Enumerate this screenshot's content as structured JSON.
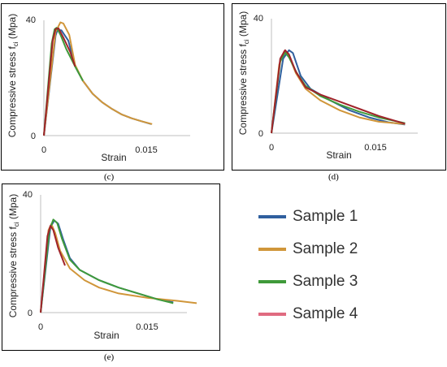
{
  "colors": {
    "Sample 1": "#2f5f9e",
    "Sample 2": "#d0963a",
    "Sample 3": "#3f9a3a",
    "Sample 4": "#a0232a",
    "Sample 4 legend": "#e06b80"
  },
  "legend": {
    "items": [
      {
        "label": "Sample 1",
        "color": "#2f5f9e"
      },
      {
        "label": "Sample 2",
        "color": "#d0963a"
      },
      {
        "label": "Sample 3",
        "color": "#3f9a3a"
      },
      {
        "label": "Sample 4",
        "color": "#e06b80"
      }
    ]
  },
  "chart_data": [
    {
      "id": "c",
      "type": "line",
      "caption": "(c)",
      "xlabel": "Strain",
      "ylabel_main": "Compressive stress f",
      "ylabel_sub": "ci",
      "ylabel_unit": " (Mpa)",
      "xlim": [
        0,
        0.015
      ],
      "ylim": [
        0,
        40
      ],
      "x_ticks": [
        "0",
        "0.015"
      ],
      "y_ticks": [
        "0",
        "40"
      ],
      "grid": false,
      "series": [
        {
          "name": "Sample 1",
          "points": [
            [
              0,
              0
            ],
            [
              0.0012,
              34.7
            ],
            [
              0.0014,
              36.7
            ],
            [
              0.0018,
              36.5
            ],
            [
              0.0025,
              33.0
            ],
            [
              0.0032,
              24.0
            ],
            [
              0.004,
              19.0
            ],
            [
              0.005,
              14.5
            ],
            [
              0.006,
              11.5
            ],
            [
              0.007,
              9.2
            ],
            [
              0.008,
              7.3
            ],
            [
              0.009,
              6.0
            ],
            [
              0.01,
              5.0
            ],
            [
              0.011,
              4.0
            ]
          ]
        },
        {
          "name": "Sample 2",
          "points": [
            [
              0,
              0
            ],
            [
              0.0012,
              36.0
            ],
            [
              0.0017,
              39.3
            ],
            [
              0.002,
              38.9
            ],
            [
              0.0026,
              35.0
            ],
            [
              0.0032,
              24.5
            ],
            [
              0.004,
              19.0
            ],
            [
              0.005,
              14.5
            ],
            [
              0.006,
              11.5
            ],
            [
              0.007,
              9.2
            ],
            [
              0.008,
              7.3
            ],
            [
              0.009,
              6.0
            ],
            [
              0.01,
              5.0
            ],
            [
              0.0111,
              4.0
            ]
          ]
        },
        {
          "name": "Sample 3",
          "points": [
            [
              0,
              0
            ],
            [
              0.0008,
              32.0
            ],
            [
              0.0011,
              36.9
            ],
            [
              0.0013,
              37.4
            ],
            [
              0.0017,
              35.0
            ],
            [
              0.0023,
              30.0
            ],
            [
              0.0032,
              24.0
            ],
            [
              0.004,
              19.0
            ]
          ]
        },
        {
          "name": "Sample 4",
          "points": [
            [
              0,
              0
            ],
            [
              0.0009,
              33.0
            ],
            [
              0.0012,
              37.0
            ],
            [
              0.0015,
              37.2
            ],
            [
              0.002,
              34.0
            ],
            [
              0.0027,
              29.0
            ],
            [
              0.0032,
              24.0
            ]
          ]
        }
      ]
    },
    {
      "id": "d",
      "type": "line",
      "caption": "(d)",
      "xlabel": "Strain",
      "ylabel_main": "Compressive stress f",
      "ylabel_sub": "ci",
      "ylabel_unit": " (Mpa)",
      "xlim": [
        0,
        0.015
      ],
      "ylim": [
        0,
        40
      ],
      "x_ticks": [
        "0",
        "0.015"
      ],
      "y_ticks": [
        "0",
        "40"
      ],
      "grid": false,
      "series": [
        {
          "name": "Sample 1",
          "points": [
            [
              0,
              0
            ],
            [
              0.0012,
              26.0
            ],
            [
              0.0018,
              29.0
            ],
            [
              0.0022,
              28.0
            ],
            [
              0.003,
              20.0
            ],
            [
              0.004,
              15.5
            ],
            [
              0.006,
              11.5
            ],
            [
              0.008,
              8.0
            ],
            [
              0.01,
              5.5
            ],
            [
              0.012,
              3.8
            ],
            [
              0.0137,
              3.0
            ]
          ]
        },
        {
          "name": "Sample 2",
          "points": [
            [
              0,
              0
            ],
            [
              0.0008,
              24.0
            ],
            [
              0.0013,
              28.6
            ],
            [
              0.0018,
              27.0
            ],
            [
              0.0025,
              21.0
            ],
            [
              0.0035,
              15.5
            ],
            [
              0.005,
              11.5
            ],
            [
              0.007,
              8.0
            ],
            [
              0.009,
              5.5
            ],
            [
              0.011,
              4.0
            ],
            [
              0.0137,
              3.2
            ]
          ]
        },
        {
          "name": "Sample 3",
          "points": [
            [
              0,
              0
            ],
            [
              0.0009,
              25.0
            ],
            [
              0.0014,
              28.2
            ],
            [
              0.0018,
              26.5
            ],
            [
              0.0026,
              21.0
            ],
            [
              0.0035,
              16.5
            ],
            [
              0.005,
              13.0
            ],
            [
              0.007,
              10.0
            ],
            [
              0.009,
              7.5
            ],
            [
              0.011,
              5.5
            ],
            [
              0.0137,
              3.5
            ]
          ]
        },
        {
          "name": "Sample 4",
          "points": [
            [
              0,
              0
            ],
            [
              0.0009,
              26.0
            ],
            [
              0.0014,
              29.0
            ],
            [
              0.0018,
              27.5
            ],
            [
              0.0025,
              21.5
            ],
            [
              0.0035,
              16.0
            ],
            [
              0.005,
              13.5
            ],
            [
              0.007,
              11.0
            ],
            [
              0.009,
              8.5
            ],
            [
              0.011,
              6.0
            ],
            [
              0.0137,
              3.3
            ]
          ]
        }
      ]
    },
    {
      "id": "e",
      "type": "line",
      "caption": "(e)",
      "xlabel": "Strain",
      "ylabel_main": "Compressive stress f",
      "ylabel_sub": "ci",
      "ylabel_unit": " (Mpa)",
      "xlim": [
        0,
        0.015
      ],
      "ylim": [
        0,
        40
      ],
      "x_ticks": [
        "0",
        "0.015"
      ],
      "y_ticks": [
        "0",
        "40"
      ],
      "grid": false,
      "series": [
        {
          "name": "Sample 1",
          "points": [
            [
              0,
              0
            ],
            [
              0.001,
              29.0
            ],
            [
              0.0014,
              31.3
            ],
            [
              0.0018,
              30.2
            ],
            [
              0.0023,
              25.0
            ],
            [
              0.003,
              18.5
            ],
            [
              0.004,
              14.5
            ],
            [
              0.006,
              11.0
            ],
            [
              0.008,
              8.5
            ],
            [
              0.01,
              6.5
            ],
            [
              0.012,
              4.5
            ],
            [
              0.0136,
              3.5
            ]
          ]
        },
        {
          "name": "Sample 2",
          "points": [
            [
              0,
              0
            ],
            [
              0.0008,
              28.0
            ],
            [
              0.0011,
              30.1
            ],
            [
              0.0015,
              27.0
            ],
            [
              0.002,
              21.0
            ],
            [
              0.003,
              15.0
            ],
            [
              0.0045,
              11.0
            ],
            [
              0.006,
              8.5
            ],
            [
              0.008,
              6.5
            ],
            [
              0.011,
              5.0
            ],
            [
              0.014,
              4.0
            ],
            [
              0.016,
              3.2
            ]
          ]
        },
        {
          "name": "Sample 3",
          "points": [
            [
              0,
              0
            ],
            [
              0.0009,
              28.0
            ],
            [
              0.0013,
              31.6
            ],
            [
              0.0017,
              30.4
            ],
            [
              0.0022,
              25.0
            ],
            [
              0.003,
              18.0
            ],
            [
              0.004,
              14.5
            ],
            [
              0.006,
              11.0
            ],
            [
              0.008,
              8.5
            ],
            [
              0.01,
              6.5
            ],
            [
              0.012,
              4.5
            ],
            [
              0.0136,
              3.2
            ]
          ]
        },
        {
          "name": "Sample 4",
          "points": [
            [
              0,
              0
            ],
            [
              0.0007,
              26.0
            ],
            [
              0.001,
              29.5
            ],
            [
              0.0013,
              28.0
            ],
            [
              0.0018,
              22.0
            ],
            [
              0.0025,
              16.0
            ]
          ]
        }
      ]
    }
  ]
}
